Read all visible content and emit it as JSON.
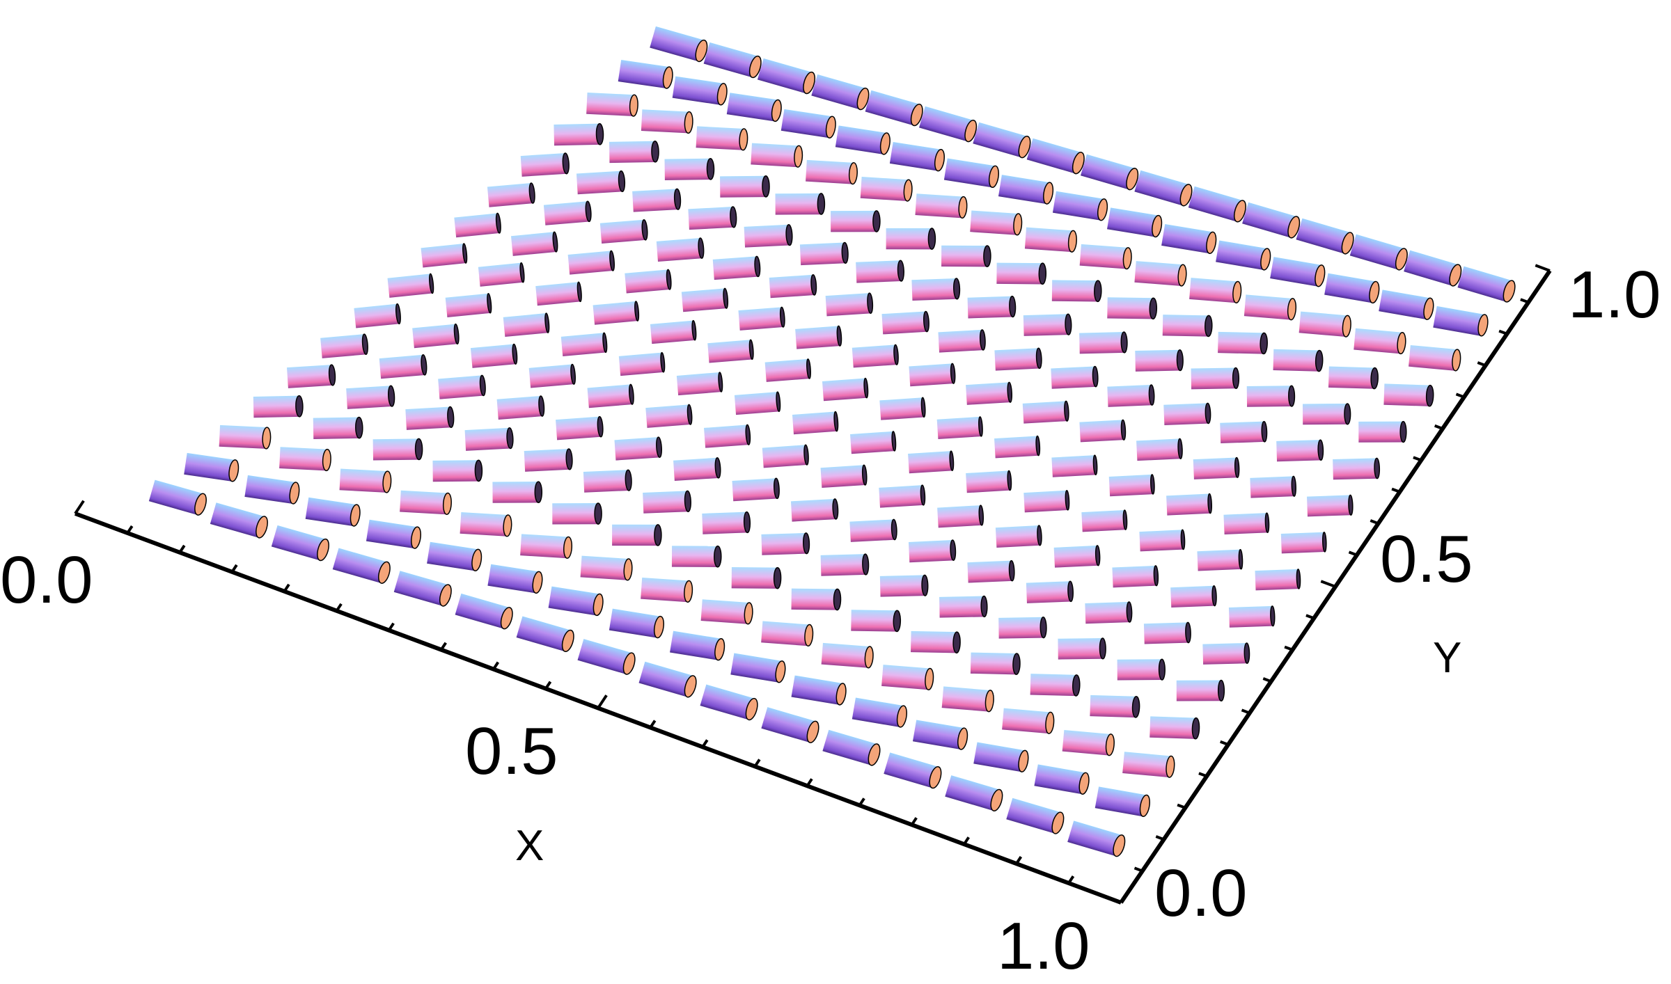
{
  "x_axis": {
    "name": "X",
    "ticks": [
      {
        "value": 0.0,
        "label": "0.0"
      },
      {
        "value": 0.5,
        "label": "0.5"
      },
      {
        "value": 1.0,
        "label": "1.0"
      }
    ]
  },
  "y_axis": {
    "name": "Y",
    "ticks": [
      {
        "value": 0.0,
        "label": "0.0"
      },
      {
        "value": 0.5,
        "label": "0.5"
      },
      {
        "value": 1.0,
        "label": "1.0"
      }
    ]
  },
  "field": {
    "description_type": "director-field-3d-cylinders",
    "grid_size": 16,
    "domain": {
      "x": [
        0,
        1
      ],
      "y": [
        0,
        1
      ]
    },
    "colors": {
      "cylinder_light": "#a8d8ff",
      "cylinder_mid": "#d48ae6",
      "cylinder_dark": "#7b4fd0",
      "cylinder_pink": "#f06fa8",
      "cap_fill": "#f4a479",
      "axis": "#000000"
    }
  }
}
